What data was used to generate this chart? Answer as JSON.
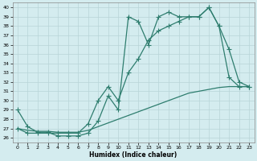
{
  "xlabel": "Humidex (Indice chaleur)",
  "bg_color": "#d4ecef",
  "line_color": "#2e7d6e",
  "grid_color": "#c0d8dc",
  "xlim": [
    -0.5,
    23.5
  ],
  "ylim": [
    25.5,
    40.5
  ],
  "yticks": [
    26,
    27,
    28,
    29,
    30,
    31,
    32,
    33,
    34,
    35,
    36,
    37,
    38,
    39,
    40
  ],
  "xticks": [
    0,
    1,
    2,
    3,
    4,
    5,
    6,
    7,
    8,
    9,
    10,
    11,
    12,
    13,
    14,
    15,
    16,
    17,
    18,
    19,
    20,
    21,
    22,
    23
  ],
  "curve1_x": [
    0,
    1,
    2,
    3,
    4,
    5,
    6,
    7,
    8,
    9,
    10,
    11,
    12,
    13,
    14,
    15,
    16,
    17,
    18,
    19,
    20,
    21,
    22,
    23
  ],
  "curve1_y": [
    29.0,
    27.2,
    26.6,
    26.6,
    26.2,
    26.2,
    26.2,
    26.5,
    27.8,
    30.5,
    29.0,
    39.0,
    38.5,
    36.0,
    39.0,
    39.5,
    39.0,
    39.0,
    39.0,
    40.0,
    38.0,
    35.5,
    32.0,
    31.5
  ],
  "curve2_x": [
    0,
    1,
    2,
    3,
    4,
    5,
    6,
    7,
    8,
    9,
    10,
    11,
    12,
    13,
    14,
    15,
    16,
    17,
    18,
    19,
    20,
    21,
    22,
    23
  ],
  "curve2_y": [
    27.0,
    26.5,
    26.5,
    26.5,
    26.5,
    26.5,
    26.5,
    27.5,
    30.0,
    31.5,
    30.0,
    33.0,
    34.5,
    36.5,
    37.5,
    38.0,
    38.5,
    39.0,
    39.0,
    40.0,
    38.0,
    32.5,
    31.5,
    31.5
  ],
  "curve3_x": [
    0,
    1,
    2,
    3,
    4,
    5,
    6,
    7,
    8,
    9,
    10,
    11,
    12,
    13,
    14,
    15,
    16,
    17,
    18,
    19,
    20,
    21,
    22,
    23
  ],
  "curve3_y": [
    27.0,
    26.8,
    26.7,
    26.7,
    26.6,
    26.6,
    26.6,
    26.8,
    27.2,
    27.6,
    28.0,
    28.4,
    28.8,
    29.2,
    29.6,
    30.0,
    30.4,
    30.8,
    31.0,
    31.2,
    31.4,
    31.5,
    31.5,
    31.5
  ]
}
